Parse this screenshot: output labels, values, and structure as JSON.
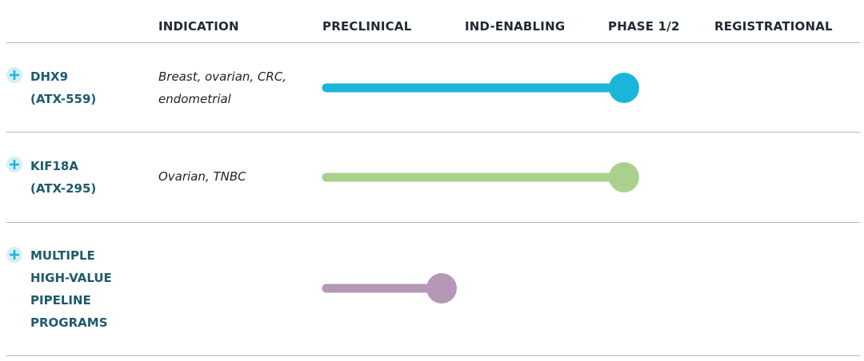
{
  "header": {
    "columns": [
      "INDICATION",
      "PRECLINICAL",
      "IND-ENABLING",
      "PHASE 1/2",
      "REGISTRATIONAL"
    ]
  },
  "rows": [
    {
      "name": [
        "DHX9",
        "(ATX-559)"
      ],
      "indication": [
        "Breast, ovarian, CRC,",
        "endometrial"
      ]
    },
    {
      "name": [
        "KIF18A",
        "(ATX-295)"
      ],
      "indication": [
        "Ovarian, TNBC"
      ]
    },
    {
      "name": [
        "MULTIPLE",
        "HIGH-VALUE",
        "PIPELINE",
        "PROGRAMS"
      ]
    }
  ]
}
